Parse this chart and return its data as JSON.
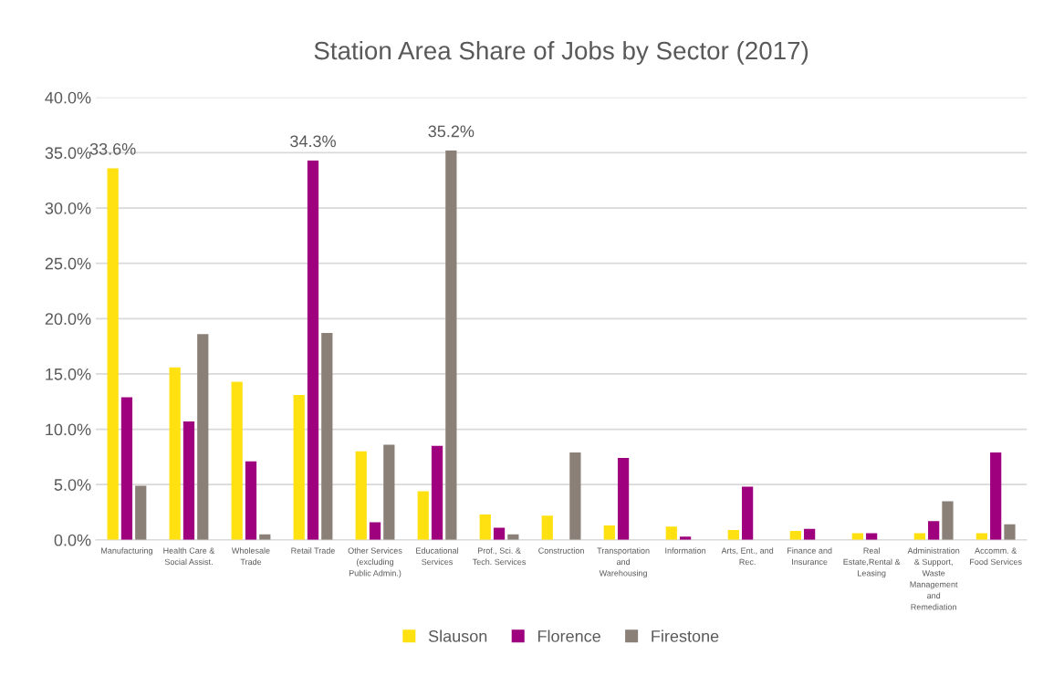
{
  "chart_data": {
    "type": "bar",
    "title": "Station Area Share of Jobs by Sector (2017)",
    "categories": [
      "Manufacturing",
      "Health Care &\nSocial Assist.",
      "Wholesale\nTrade",
      "Retail Trade",
      "Other Services\n(excluding\nPublic Admin.)",
      "Educational\nServices",
      "Prof., Sci. &\nTech. Services",
      "Construction",
      "Transportation\nand\nWarehousing",
      "Information",
      "Arts, Ent., and\nRec.",
      "Finance and\nInsurance",
      "Real\nEstate,Rental &\nLeasing",
      "Administration\n& Support,\nWaste\nManagement\nand\nRemediation",
      "Accomm. &\nFood Services"
    ],
    "series": [
      {
        "name": "Slauson",
        "color": "#ffe010",
        "values": [
          33.6,
          15.6,
          14.3,
          13.1,
          8.0,
          4.4,
          2.3,
          2.2,
          1.3,
          1.2,
          0.9,
          0.8,
          0.6,
          0.6,
          0.6
        ],
        "value_labels": [
          "33.6%",
          null,
          null,
          null,
          null,
          null,
          null,
          null,
          null,
          null,
          null,
          null,
          null,
          null,
          null
        ]
      },
      {
        "name": "Florence",
        "color": "#9e007e",
        "values": [
          12.9,
          10.7,
          7.1,
          34.3,
          1.6,
          8.5,
          1.1,
          null,
          7.4,
          0.3,
          4.8,
          1.0,
          0.6,
          1.7,
          7.9
        ],
        "value_labels": [
          null,
          null,
          null,
          "34.3%",
          null,
          null,
          null,
          null,
          null,
          null,
          null,
          null,
          null,
          null,
          null
        ]
      },
      {
        "name": "Firestone",
        "color": "#8b8078",
        "values": [
          4.9,
          18.6,
          0.5,
          18.7,
          8.6,
          35.2,
          0.5,
          7.9,
          null,
          null,
          null,
          null,
          null,
          3.5,
          1.4
        ],
        "value_labels": [
          null,
          null,
          null,
          null,
          null,
          "35.2%",
          null,
          null,
          null,
          null,
          null,
          null,
          null,
          null,
          null
        ]
      }
    ],
    "ylim": [
      0,
      40
    ],
    "yticks": [
      {
        "value": 0,
        "label": "0.0%"
      },
      {
        "value": 5,
        "label": "5.0%"
      },
      {
        "value": 10,
        "label": "10.0%"
      },
      {
        "value": 15,
        "label": "15.0%"
      },
      {
        "value": 20,
        "label": "20.0%"
      },
      {
        "value": 25,
        "label": "25.0%"
      },
      {
        "value": 30,
        "label": "30.0%"
      },
      {
        "value": 35,
        "label": "35.0%"
      },
      {
        "value": 40,
        "label": "40.0%"
      }
    ],
    "grid": "y",
    "legend": "bottom"
  }
}
